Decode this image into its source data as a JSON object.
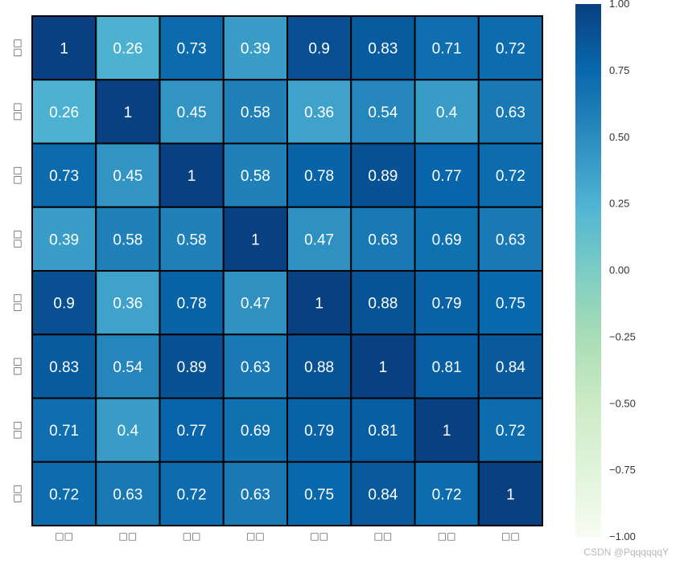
{
  "chart_data": {
    "type": "heatmap",
    "title": "",
    "xlabel": "",
    "ylabel": "",
    "x_tick_labels": [
      "□□",
      "□□",
      "□□",
      "□□",
      "□□",
      "□□",
      "□□",
      "□□"
    ],
    "y_tick_labels": [
      "□□",
      "□□",
      "□□",
      "□□",
      "□□",
      "□□",
      "□□",
      "□□"
    ],
    "values": [
      [
        1,
        0.26,
        0.73,
        0.39,
        0.9,
        0.83,
        0.71,
        0.72
      ],
      [
        0.26,
        1,
        0.45,
        0.58,
        0.36,
        0.54,
        0.4,
        0.63
      ],
      [
        0.73,
        0.45,
        1,
        0.58,
        0.78,
        0.89,
        0.77,
        0.72
      ],
      [
        0.39,
        0.58,
        0.58,
        1,
        0.47,
        0.63,
        0.69,
        0.63
      ],
      [
        0.9,
        0.36,
        0.78,
        0.47,
        1,
        0.88,
        0.79,
        0.75
      ],
      [
        0.83,
        0.54,
        0.89,
        0.63,
        0.88,
        1,
        0.81,
        0.84
      ],
      [
        0.71,
        0.4,
        0.77,
        0.69,
        0.79,
        0.81,
        1,
        0.72
      ],
      [
        0.72,
        0.63,
        0.72,
        0.63,
        0.75,
        0.84,
        0.72,
        1
      ]
    ],
    "value_labels": [
      [
        "1",
        "0.26",
        "0.73",
        "0.39",
        "0.9",
        "0.83",
        "0.71",
        "0.72"
      ],
      [
        "0.26",
        "1",
        "0.45",
        "0.58",
        "0.36",
        "0.54",
        "0.4",
        "0.63"
      ],
      [
        "0.73",
        "0.45",
        "1",
        "0.58",
        "0.78",
        "0.89",
        "0.77",
        "0.72"
      ],
      [
        "0.39",
        "0.58",
        "0.58",
        "1",
        "0.47",
        "0.63",
        "0.69",
        "0.63"
      ],
      [
        "0.9",
        "0.36",
        "0.78",
        "0.47",
        "1",
        "0.88",
        "0.79",
        "0.75"
      ],
      [
        "0.83",
        "0.54",
        "0.89",
        "0.63",
        "0.88",
        "1",
        "0.81",
        "0.84"
      ],
      [
        "0.71",
        "0.4",
        "0.77",
        "0.69",
        "0.79",
        "0.81",
        "1",
        "0.72"
      ],
      [
        "0.72",
        "0.63",
        "0.72",
        "0.63",
        "0.75",
        "0.84",
        "0.72",
        "1"
      ]
    ],
    "vmin": -1,
    "vmax": 1,
    "colormap": "GnBu",
    "colormap_stops": [
      {
        "value": -1.0,
        "color": "#f7fcf0"
      },
      {
        "value": -0.75,
        "color": "#e0f3db"
      },
      {
        "value": -0.5,
        "color": "#ccebc5"
      },
      {
        "value": -0.25,
        "color": "#a8ddb5"
      },
      {
        "value": 0.0,
        "color": "#7bccc4"
      },
      {
        "value": 0.25,
        "color": "#4eb3d3"
      },
      {
        "value": 0.5,
        "color": "#2b8cbe"
      },
      {
        "value": 0.75,
        "color": "#0868ac"
      },
      {
        "value": 1.0,
        "color": "#084081"
      }
    ],
    "colorbar_ticks": [
      1.0,
      0.75,
      0.5,
      0.25,
      0.0,
      -0.25,
      -0.5,
      -0.75,
      -1.0
    ],
    "colorbar_tick_labels": [
      "1.00",
      "0.75",
      "0.50",
      "0.25",
      "0.00",
      "−0.25",
      "−0.50",
      "−0.75",
      "−1.00"
    ],
    "cell_border_color": "#000000",
    "annotation_color": "#ffffff",
    "tick_label_color": "#555555"
  },
  "watermark": "CSDN @PqqqqqqY"
}
